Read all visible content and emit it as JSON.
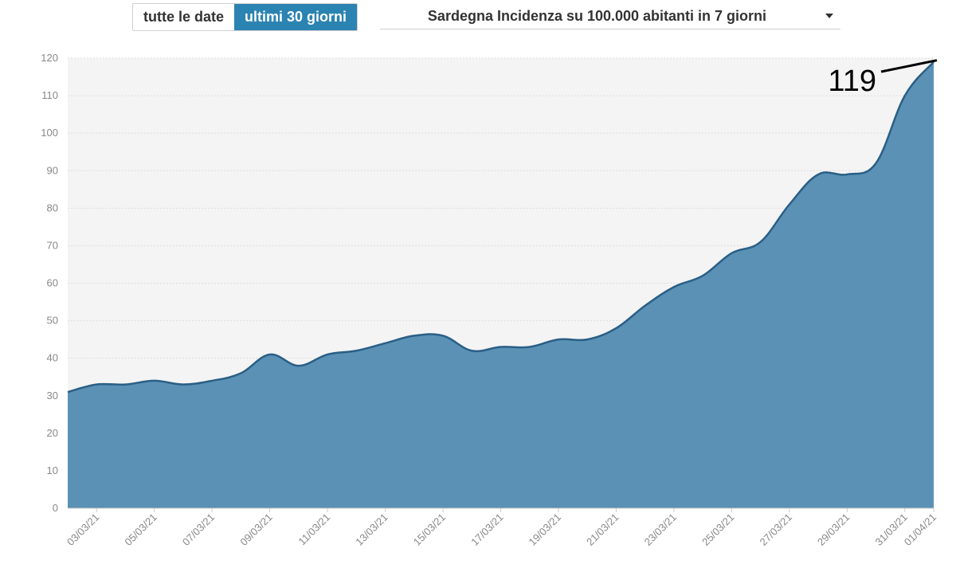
{
  "controls": {
    "range_all_label": "tutte le date",
    "range_30_label": "ultimi 30 giorni",
    "metric_select_value": "Sardegna Incidenza su 100.000 abitanti in 7 giorni"
  },
  "chart_data": {
    "type": "area",
    "title": "Sardegna Incidenza su 100.000 abitanti in 7 giorni",
    "x": [
      "02/03/21",
      "03/03/21",
      "04/03/21",
      "05/03/21",
      "06/03/21",
      "07/03/21",
      "08/03/21",
      "09/03/21",
      "10/03/21",
      "11/03/21",
      "12/03/21",
      "13/03/21",
      "14/03/21",
      "15/03/21",
      "16/03/21",
      "17/03/21",
      "18/03/21",
      "19/03/21",
      "20/03/21",
      "21/03/21",
      "22/03/21",
      "23/03/21",
      "24/03/21",
      "25/03/21",
      "26/03/21",
      "27/03/21",
      "28/03/21",
      "29/03/21",
      "30/03/21",
      "31/03/21",
      "01/04/21"
    ],
    "values": [
      31,
      33,
      33,
      34,
      33,
      34,
      36,
      41,
      38,
      41,
      42,
      44,
      46,
      46,
      42,
      43,
      43,
      45,
      45,
      48,
      54,
      59,
      62,
      68,
      71,
      81,
      89,
      89,
      92,
      110,
      119
    ],
    "xticks": [
      "03/03/21",
      "05/03/21",
      "07/03/21",
      "09/03/21",
      "11/03/21",
      "13/03/21",
      "15/03/21",
      "17/03/21",
      "19/03/21",
      "21/03/21",
      "23/03/21",
      "25/03/21",
      "27/03/21",
      "29/03/21",
      "31/03/21",
      "01/04/21"
    ],
    "yticks": [
      0,
      10,
      20,
      30,
      40,
      50,
      60,
      70,
      80,
      90,
      100,
      110,
      120
    ],
    "ylim": [
      0,
      120
    ],
    "xlabel": "",
    "ylabel": "",
    "grid": true,
    "annotation": {
      "text": "119",
      "target_index": 30
    },
    "colors": {
      "fill": "#5b91b5",
      "line": "#2a5f86",
      "plot_bg": "#f4f4f4"
    }
  }
}
